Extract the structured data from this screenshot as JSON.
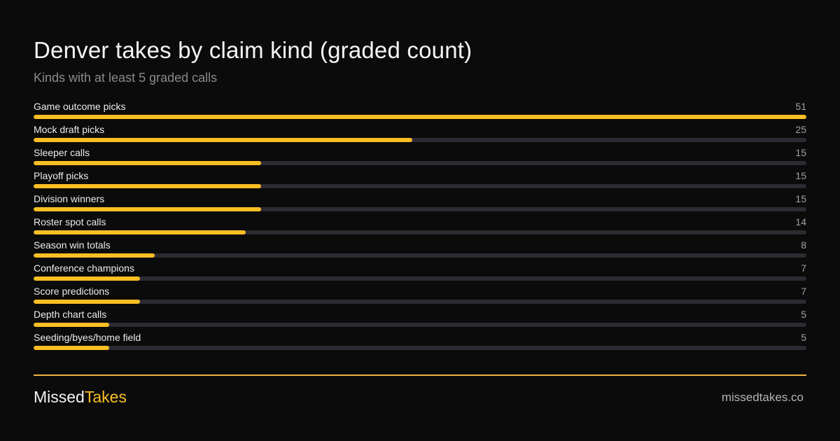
{
  "title": "Denver takes by claim kind (graded count)",
  "subtitle": "Kinds with at least 5 graded calls",
  "chart_data": {
    "type": "bar",
    "orientation": "horizontal",
    "title": "Denver takes by claim kind (graded count)",
    "subtitle": "Kinds with at least 5 graded calls",
    "categories": [
      "Game outcome picks",
      "Mock draft picks",
      "Sleeper calls",
      "Playoff picks",
      "Division winners",
      "Roster spot calls",
      "Season win totals",
      "Conference champions",
      "Score predictions",
      "Depth chart calls",
      "Seeding/byes/home field"
    ],
    "values": [
      51,
      25,
      15,
      15,
      15,
      14,
      8,
      7,
      7,
      5,
      5
    ],
    "xlim": [
      0,
      51
    ],
    "grid": false,
    "legend": "none",
    "bar_color": "#fbbf24",
    "track_color": "#2b2b31"
  },
  "footer": {
    "brand_part1": "Missed",
    "brand_part2": "Takes",
    "site": "missedtakes.co"
  },
  "colors": {
    "background": "#0b0b0b",
    "accent": "#fbbf24",
    "divider": "#e9b443"
  }
}
